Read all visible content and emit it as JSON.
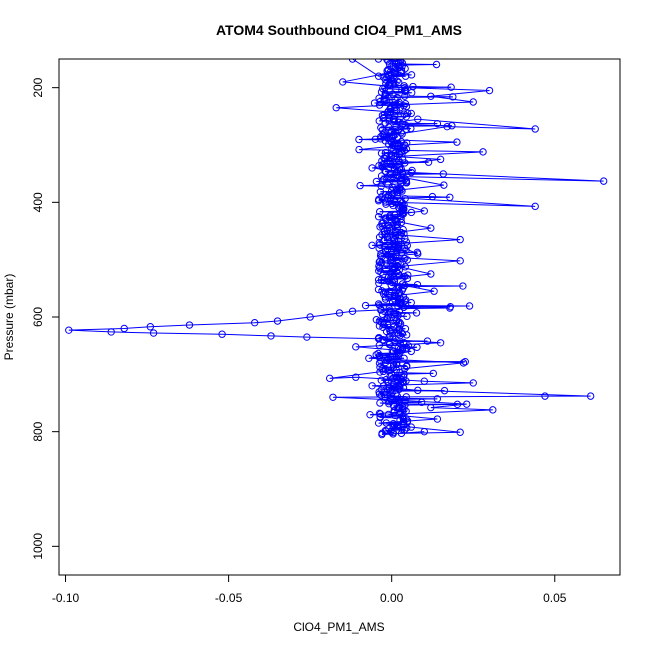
{
  "chart_data": {
    "type": "scatter",
    "title": "ATOM4 Southbound ClO4_PM1_AMS",
    "xlabel": "ClO4_PM1_AMS",
    "ylabel": "Pressure (mbar)",
    "xlim": [
      -0.102,
      0.07
    ],
    "ylim": [
      1050,
      150
    ],
    "y_reversed": true,
    "grid": false,
    "x_ticks": [
      -0.1,
      -0.05,
      0.0,
      0.05
    ],
    "x_tick_labels": [
      "-0.10",
      "-0.05",
      "0.00",
      "0.05"
    ],
    "y_ticks": [
      200,
      400,
      600,
      800,
      1000
    ],
    "y_tick_labels": [
      "200",
      "400",
      "600",
      "800",
      "1000"
    ],
    "marker": "open-circle",
    "connected": true,
    "series_color": "#0000ff",
    "series": [
      {
        "points": [
          [
            -0.012,
            150
          ],
          [
            -0.004,
            180
          ],
          [
            0.003,
            170
          ],
          [
            -0.015,
            190
          ],
          [
            0.004,
            200
          ],
          [
            0.03,
            205
          ],
          [
            0.012,
            215
          ],
          [
            0.025,
            225
          ],
          [
            0.001,
            230
          ],
          [
            -0.017,
            235
          ],
          [
            0.006,
            245
          ],
          [
            0.002,
            260
          ],
          [
            0.008,
            255
          ],
          [
            0.044,
            272
          ],
          [
            0.017,
            268
          ],
          [
            0.001,
            282
          ],
          [
            -0.005,
            290
          ],
          [
            0.02,
            295
          ],
          [
            0.004,
            300
          ],
          [
            -0.01,
            308
          ],
          [
            0.028,
            312
          ],
          [
            0.001,
            320
          ],
          [
            0.015,
            325
          ],
          [
            0.0,
            335
          ],
          [
            -0.006,
            340
          ],
          [
            0.006,
            348
          ],
          [
            0.065,
            363
          ],
          [
            0.002,
            355
          ],
          [
            0.016,
            370
          ],
          [
            0.0,
            380
          ],
          [
            -0.003,
            390
          ],
          [
            0.044,
            407
          ],
          [
            0.001,
            400
          ],
          [
            0.01,
            415
          ],
          [
            -0.004,
            425
          ],
          [
            0.003,
            435
          ],
          [
            0.012,
            445
          ],
          [
            -0.002,
            455
          ],
          [
            0.021,
            465
          ],
          [
            -0.006,
            475
          ],
          [
            0.004,
            480
          ],
          [
            0.008,
            490
          ],
          [
            -0.003,
            495
          ],
          [
            0.021,
            502
          ],
          [
            0.002,
            512
          ],
          [
            0.012,
            525
          ],
          [
            -0.004,
            535
          ],
          [
            0.004,
            545
          ],
          [
            0.013,
            555
          ],
          [
            -0.002,
            565
          ],
          [
            0.006,
            575
          ],
          [
            -0.008,
            580
          ],
          [
            0.018,
            582
          ],
          [
            -0.012,
            590
          ],
          [
            -0.016,
            593
          ],
          [
            -0.025,
            600
          ],
          [
            -0.035,
            607
          ],
          [
            -0.042,
            610
          ],
          [
            -0.062,
            614
          ],
          [
            -0.074,
            617
          ],
          [
            -0.082,
            620
          ],
          [
            -0.099,
            623
          ],
          [
            -0.086,
            626
          ],
          [
            -0.073,
            628
          ],
          [
            -0.052,
            630
          ],
          [
            -0.037,
            633
          ],
          [
            -0.026,
            635
          ],
          [
            -0.004,
            638
          ],
          [
            0.015,
            645
          ],
          [
            -0.011,
            652
          ],
          [
            0.006,
            660
          ],
          [
            -0.007,
            672
          ],
          [
            0.022,
            680
          ],
          [
            0.004,
            690
          ],
          [
            -0.019,
            707
          ],
          [
            -0.011,
            705
          ],
          [
            0.01,
            712
          ],
          [
            0.025,
            715
          ],
          [
            -0.006,
            720
          ],
          [
            0.008,
            728
          ],
          [
            0.061,
            738
          ],
          [
            0.047,
            738
          ],
          [
            -0.018,
            740
          ],
          [
            0.002,
            745
          ],
          [
            0.023,
            752
          ],
          [
            0.012,
            758
          ],
          [
            0.031,
            762
          ],
          [
            -0.001,
            770
          ],
          [
            0.014,
            778
          ],
          [
            -0.004,
            785
          ],
          [
            0.006,
            792
          ],
          [
            0.021,
            801
          ],
          [
            0.003,
            803
          ],
          [
            -0.003,
            805
          ],
          [
            0.01,
            800
          ]
        ]
      }
    ]
  }
}
